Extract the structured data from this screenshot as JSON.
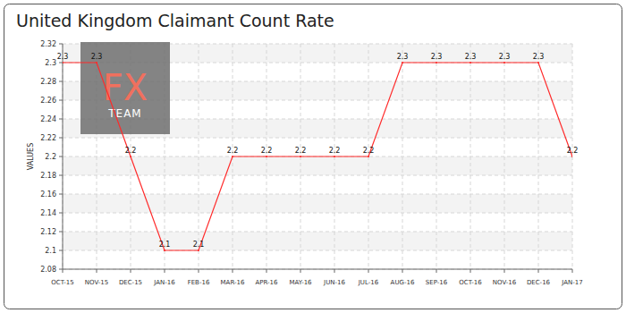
{
  "chart_data": {
    "type": "line",
    "title": "United Kingdom Claimant Count Rate",
    "y_label": "VALUES",
    "annotations": [
      "FX",
      "TEAM"
    ],
    "categories": [
      "OCT-15",
      "NOV-15",
      "DEC-15",
      "JAN-16",
      "FEB-16",
      "MAR-16",
      "APR-16",
      "MAY-16",
      "JUN-16",
      "JUL-16",
      "AUG-16",
      "SEP-16",
      "OCT-16",
      "NOV-16",
      "DEC-16",
      "JAN-17"
    ],
    "values": [
      2.3,
      2.3,
      2.2,
      2.1,
      2.1,
      2.2,
      2.2,
      2.2,
      2.2,
      2.2,
      2.3,
      2.3,
      2.3,
      2.3,
      2.3,
      2.2
    ],
    "color": "#ff2a2a",
    "ylim": [
      2.08,
      2.32
    ],
    "yticks": [
      2.08,
      2.1,
      2.12,
      2.14,
      2.16,
      2.18,
      2.2,
      2.22,
      2.24,
      2.26,
      2.28,
      2.3,
      2.32
    ],
    "grid": true,
    "data_labels": true
  }
}
